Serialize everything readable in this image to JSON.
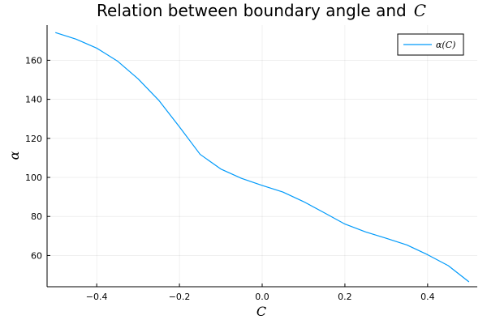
{
  "chart_data": {
    "type": "line",
    "title": "Relation between boundary angle and",
    "title_math": "C",
    "xlabel": "C",
    "ylabel": "α",
    "xlim": [
      -0.52,
      0.52
    ],
    "ylim": [
      44,
      178
    ],
    "xticks": [
      -0.4,
      -0.2,
      0.0,
      0.2,
      0.4
    ],
    "xtick_labels": [
      "−0.4",
      "−0.2",
      "0.0",
      "0.2",
      "0.4"
    ],
    "yticks": [
      60,
      80,
      100,
      120,
      140,
      160
    ],
    "ytick_labels": [
      "60",
      "80",
      "100",
      "120",
      "140",
      "160"
    ],
    "grid": true,
    "legend_position": "top-right",
    "series": [
      {
        "name": "α(C)",
        "color": "#009AFA",
        "x": [
          -0.5,
          -0.45,
          -0.4,
          -0.35,
          -0.3,
          -0.25,
          -0.2,
          -0.15,
          -0.1,
          -0.05,
          0.0,
          0.05,
          0.1,
          0.15,
          0.2,
          0.25,
          0.3,
          0.35,
          0.4,
          0.45,
          0.5
        ],
        "y": [
          174.2,
          170.8,
          166.2,
          159.6,
          150.5,
          139.5,
          125.9,
          111.8,
          104.3,
          99.5,
          95.9,
          92.5,
          87.6,
          81.9,
          76.1,
          72.1,
          68.8,
          65.4,
          60.4,
          54.8,
          46.5
        ]
      }
    ]
  }
}
